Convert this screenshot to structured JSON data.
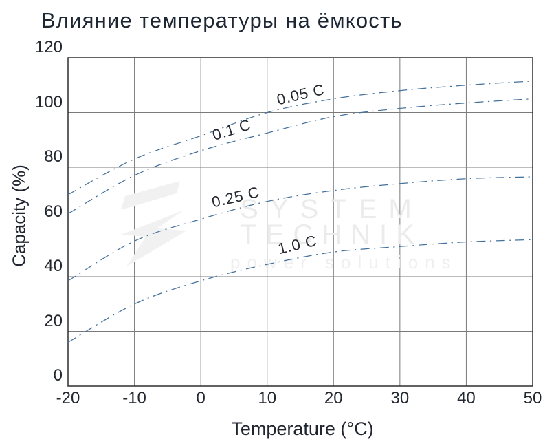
{
  "chart_data": {
    "type": "line",
    "title": "Влияние температуры на ёмкость",
    "xlabel": "Temperature (°C)",
    "ylabel": "Capacity (%)",
    "x": [
      -20,
      -10,
      0,
      10,
      20,
      30,
      40,
      50
    ],
    "xlim": [
      -20,
      50
    ],
    "ylim": [
      0,
      120
    ],
    "x_ticks": [
      "-20",
      "-10",
      "0",
      "10",
      "20",
      "30",
      "40",
      "50"
    ],
    "y_ticks": [
      "120",
      "100",
      "80",
      "60",
      "40",
      "20",
      "0"
    ],
    "y_tick_values": [
      120,
      100,
      80,
      60,
      40,
      20,
      0
    ],
    "grid": true,
    "line_style": "dash-dot",
    "legend_position": "inline-labels",
    "series": [
      {
        "name": "0.05 C",
        "values": [
          70,
          83,
          91.5,
          100,
          105,
          108,
          110,
          111.5
        ],
        "label": {
          "text": "0.05 C",
          "temp": 15.1,
          "capacity": 106.2,
          "rotation": -13
        }
      },
      {
        "name": "0.1 C",
        "values": [
          63,
          77,
          86,
          92.5,
          98.5,
          101.5,
          103.5,
          105
        ],
        "label": {
          "text": "0.1 C",
          "temp": 4.7,
          "capacity": 93.3,
          "rotation": -17
        }
      },
      {
        "name": "0.25 C",
        "values": [
          38.5,
          53,
          61,
          67.5,
          71.5,
          74,
          75.8,
          76.5
        ],
        "label": {
          "text": "0.25 C",
          "temp": 5.3,
          "capacity": 68.7,
          "rotation": -13
        }
      },
      {
        "name": "1.0 C",
        "values": [
          16,
          30,
          38.5,
          44.5,
          49,
          51,
          52.7,
          53.5
        ],
        "label": {
          "text": "1.0 C",
          "temp": 14.6,
          "capacity": 51.3,
          "rotation": -13
        }
      }
    ]
  },
  "watermark": {
    "line1": "SYSTEM",
    "line2": "TECHNIK",
    "line3": "power solutions"
  },
  "colors": {
    "curve": "#44719c",
    "grid": "#7a7a7a",
    "border": "#2e2e2e",
    "title_text": "#1d2733",
    "tick_text": "#23272f",
    "watermark": "#ebebeb"
  }
}
